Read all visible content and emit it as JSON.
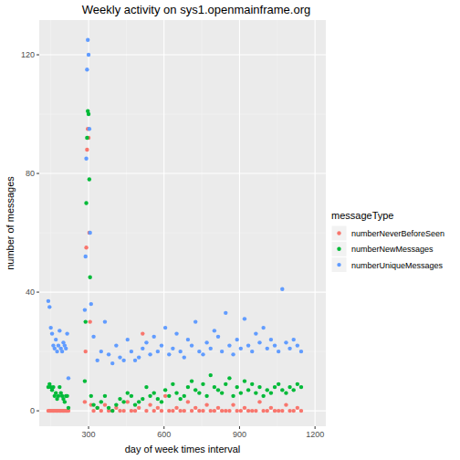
{
  "chart_data": {
    "type": "scatter",
    "title": "Weekly activity on sys1.openmainframe.org",
    "x_label": "day of week times interval",
    "y_label": "number of messages",
    "legend_title": "messageType",
    "legend": "right",
    "grid": true,
    "marker": "circle",
    "xlim": [
      104,
      1243
    ],
    "ylim": [
      -5.2,
      131.7
    ],
    "xticks": [
      300,
      600,
      900,
      1200
    ],
    "yticks": [
      0,
      40,
      80,
      120
    ],
    "x": [
      140,
      145,
      150,
      155,
      160,
      165,
      170,
      175,
      180,
      185,
      190,
      195,
      200,
      205,
      210,
      215,
      220,
      285,
      288,
      291,
      294,
      297,
      300,
      303,
      306,
      310,
      320,
      335,
      350,
      365,
      380,
      395,
      410,
      425,
      440,
      455,
      470,
      485,
      500,
      515,
      530,
      545,
      560,
      575,
      590,
      605,
      620,
      635,
      650,
      665,
      680,
      695,
      710,
      725,
      740,
      755,
      770,
      785,
      800,
      815,
      830,
      845,
      860,
      875,
      890,
      905,
      920,
      935,
      950,
      965,
      980,
      995,
      1010,
      1025,
      1040,
      1055,
      1070,
      1085,
      1100,
      1115,
      1130,
      1145
    ],
    "series": [
      {
        "name": "numberNeverBeforeSeen",
        "color": "#F8766D",
        "values": [
          0,
          0,
          0,
          0,
          0,
          0,
          0,
          0,
          0,
          0,
          0,
          0,
          0,
          0,
          0,
          0,
          0,
          3,
          20,
          55,
          88,
          95,
          92,
          60,
          30,
          2,
          0,
          1,
          0,
          2,
          0,
          0,
          1,
          0,
          0,
          3,
          0,
          0,
          1,
          26,
          0,
          2,
          0,
          1,
          0,
          5,
          0,
          0,
          1,
          0,
          0,
          3,
          0,
          1,
          0,
          0,
          2,
          0,
          0,
          1,
          0,
          0,
          0,
          2,
          0,
          0,
          1,
          0,
          0,
          0,
          3,
          0,
          0,
          1,
          0,
          0,
          0,
          2,
          0,
          0,
          1,
          0
        ]
      },
      {
        "name": "numberNewMessages",
        "color": "#00BA38",
        "values": [
          8,
          9,
          8,
          7,
          8,
          5,
          6,
          4,
          5,
          8,
          6,
          5,
          4,
          3,
          5,
          5,
          1,
          10,
          30,
          70,
          92,
          101,
          100,
          78,
          45,
          5,
          2,
          1,
          3,
          5,
          1,
          0,
          2,
          4,
          3,
          6,
          5,
          2,
          3,
          4,
          8,
          5,
          6,
          4,
          3,
          7,
          5,
          9,
          6,
          4,
          5,
          8,
          10,
          7,
          6,
          9,
          5,
          12,
          8,
          7,
          6,
          9,
          11,
          5,
          8,
          6,
          10,
          7,
          9,
          6,
          8,
          5,
          7,
          6,
          8,
          9,
          7,
          6,
          8,
          7,
          9,
          8
        ]
      },
      {
        "name": "numberUniqueMessages",
        "color": "#619CFF",
        "values": [
          37,
          35,
          28,
          26,
          22,
          21,
          24,
          20,
          22,
          27,
          21,
          20,
          23,
          22,
          21,
          26,
          11,
          34,
          52,
          85,
          115,
          125,
          120,
          95,
          60,
          36,
          25,
          17,
          20,
          30,
          19,
          16,
          22,
          18,
          17,
          24,
          20,
          17,
          18,
          21,
          23,
          19,
          25,
          20,
          22,
          28,
          19,
          21,
          26,
          20,
          18,
          24,
          22,
          30,
          20,
          19,
          23,
          21,
          27,
          25,
          20,
          33,
          22,
          19,
          24,
          21,
          31,
          22,
          20,
          26,
          23,
          28,
          21,
          24,
          22,
          20,
          41,
          23,
          21,
          24,
          22,
          20
        ]
      }
    ]
  }
}
